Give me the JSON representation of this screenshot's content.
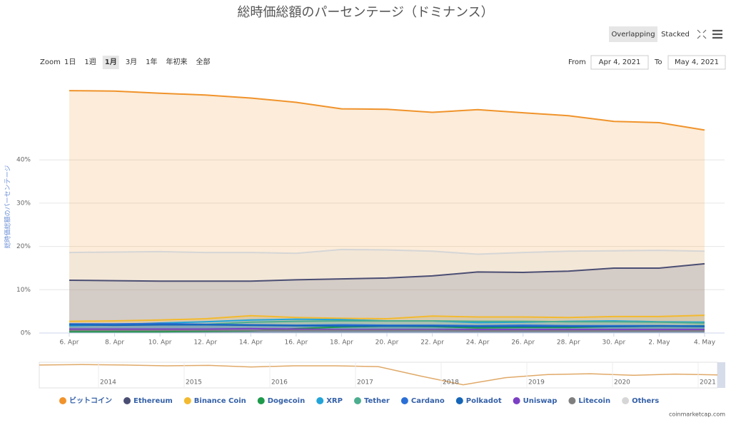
{
  "chart_data": {
    "type": "area",
    "title": "総時価総額のパーセンテージ（ドミナンス）",
    "y_label": "総時価総額のパーセンテージ",
    "view_buttons": [
      "Overlapping",
      "Stacked"
    ],
    "zoom_label": "Zoom",
    "zoom_buttons": [
      "1日",
      "1週",
      "1月",
      "3月",
      "1年",
      "年初来",
      "全部"
    ],
    "from_label": "From",
    "from_value": "Apr 4, 2021",
    "to_label": "To",
    "to_value": "May 4, 2021",
    "credit": "coinmarketcap.com",
    "categories": [
      "6. Apr",
      "8. Apr",
      "10. Apr",
      "12. Apr",
      "14. Apr",
      "16. Apr",
      "18. Apr",
      "20. Apr",
      "22. Apr",
      "24. Apr",
      "26. Apr",
      "28. Apr",
      "30. Apr",
      "2. May",
      "4. May"
    ],
    "ylim": [
      0,
      58
    ],
    "yticks": [
      {
        "value": 0,
        "label": "0%"
      },
      {
        "value": 10,
        "label": "10%"
      },
      {
        "value": 20,
        "label": "20%"
      },
      {
        "value": 30,
        "label": "30%"
      },
      {
        "value": 40,
        "label": "40%"
      }
    ],
    "grid": true,
    "series": [
      {
        "name": "ビットコイン",
        "color": "#f0932b",
        "values": [
          56.0,
          55.9,
          55.4,
          55.0,
          54.3,
          53.3,
          51.8,
          51.7,
          51.0,
          51.6,
          50.9,
          50.2,
          48.9,
          48.6,
          46.9
        ]
      },
      {
        "name": "Ethereum",
        "color": "#4b4e73",
        "values": [
          12.2,
          12.1,
          12.0,
          12.0,
          12.0,
          12.3,
          12.5,
          12.7,
          13.2,
          14.1,
          14.0,
          14.3,
          15.0,
          15.0,
          16.0
        ]
      },
      {
        "name": "Binance Coin",
        "color": "#f3ba2f",
        "values": [
          2.7,
          2.8,
          3.0,
          3.3,
          4.0,
          3.6,
          3.4,
          3.3,
          3.9,
          3.7,
          3.7,
          3.6,
          3.8,
          3.8,
          4.1
        ]
      },
      {
        "name": "Dogecoin",
        "color": "#1e9a4b",
        "values": [
          0.3,
          0.3,
          0.3,
          0.4,
          0.5,
          1.0,
          1.4,
          1.6,
          1.5,
          1.2,
          1.3,
          1.3,
          1.5,
          1.6,
          1.7
        ]
      },
      {
        "name": "XRP",
        "color": "#23a4d9",
        "values": [
          1.7,
          1.9,
          2.3,
          2.6,
          3.0,
          3.2,
          3.1,
          2.8,
          2.8,
          2.4,
          2.5,
          2.7,
          2.8,
          2.6,
          2.5
        ]
      },
      {
        "name": "Tether",
        "color": "#4cae8f",
        "values": [
          2.0,
          2.0,
          2.0,
          2.0,
          2.5,
          2.7,
          2.8,
          2.8,
          2.8,
          2.7,
          2.7,
          2.6,
          2.6,
          2.5,
          2.3
        ]
      },
      {
        "name": "Cardano",
        "color": "#2a6fd6",
        "values": [
          2.1,
          2.1,
          2.2,
          2.0,
          1.9,
          1.8,
          1.9,
          1.8,
          1.8,
          1.7,
          1.8,
          1.7,
          1.7,
          1.7,
          1.6
        ]
      },
      {
        "name": "Polkadot",
        "color": "#1565b8",
        "values": [
          1.9,
          1.8,
          1.9,
          1.9,
          1.8,
          1.7,
          1.6,
          1.6,
          1.6,
          1.5,
          1.5,
          1.5,
          1.5,
          1.6,
          1.5
        ]
      },
      {
        "name": "Uniswap",
        "color": "#7b3fc4",
        "values": [
          0.9,
          0.9,
          0.9,
          0.9,
          1.0,
          0.9,
          0.8,
          0.8,
          0.8,
          0.8,
          0.8,
          0.8,
          0.8,
          0.8,
          0.8
        ]
      },
      {
        "name": "Litecoin",
        "color": "#7f7f7f",
        "values": [
          0.6,
          0.6,
          0.6,
          0.6,
          0.6,
          0.6,
          0.6,
          0.6,
          0.6,
          0.5,
          0.5,
          0.5,
          0.5,
          0.5,
          0.5
        ]
      },
      {
        "name": "Others",
        "color": "#d6d6d6",
        "values": [
          18.6,
          18.7,
          18.8,
          18.6,
          18.6,
          18.4,
          19.3,
          19.2,
          18.9,
          18.2,
          18.6,
          18.9,
          19.0,
          19.1,
          18.9
        ]
      }
    ],
    "navigator": {
      "xticks": [
        "2014",
        "2015",
        "2016",
        "2017",
        "2018",
        "2019",
        "2020",
        "2021"
      ],
      "ylim": [
        30,
        95
      ],
      "color": "#e0a968",
      "values": [
        88,
        89,
        88,
        86,
        87,
        83,
        86,
        86,
        84,
        60,
        38,
        56,
        64,
        66,
        62,
        65,
        63
      ]
    }
  }
}
